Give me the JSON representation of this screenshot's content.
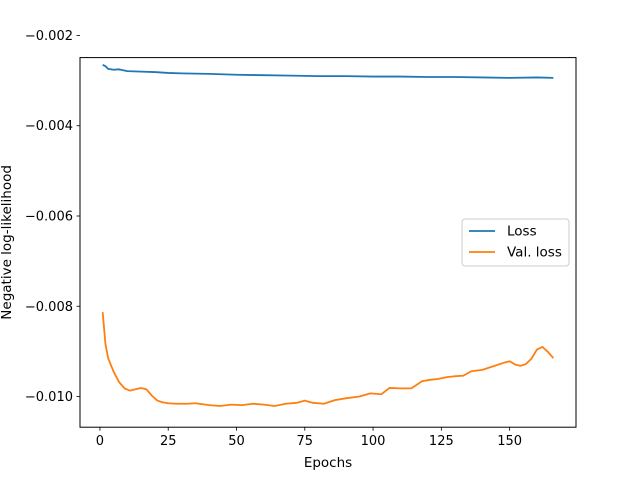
{
  "chart_data": {
    "type": "line",
    "title": "",
    "xlabel": "Epochs",
    "ylabel": "Negative log-likelihood",
    "xlim": [
      -7.3,
      174.3
    ],
    "ylim": [
      -0.01068,
      -0.00249
    ],
    "xticks": [
      0,
      25,
      50,
      75,
      100,
      125,
      150
    ],
    "xtick_labels": [
      "0",
      "25",
      "50",
      "75",
      "100",
      "125",
      "150"
    ],
    "yticks": [
      -0.01,
      -0.008,
      -0.006,
      -0.004,
      -0.002
    ],
    "ytick_labels": [
      "−0.010",
      "−0.008",
      "−0.006",
      "−0.004",
      "−0.002"
    ],
    "grid": false,
    "legend_position": "center-right",
    "series": [
      {
        "name": "Loss",
        "color": "#1f77b4",
        "points": [
          [
            1,
            -0.00265
          ],
          [
            2,
            -0.00268
          ],
          [
            3,
            -0.00274
          ],
          [
            5,
            -0.00276
          ],
          [
            7,
            -0.00275
          ],
          [
            10,
            -0.00279
          ],
          [
            15,
            -0.0028
          ],
          [
            20,
            -0.00281
          ],
          [
            25,
            -0.00283
          ],
          [
            30,
            -0.00284
          ],
          [
            40,
            -0.00285
          ],
          [
            50,
            -0.00287
          ],
          [
            60,
            -0.00288
          ],
          [
            70,
            -0.00289
          ],
          [
            80,
            -0.0029
          ],
          [
            90,
            -0.0029
          ],
          [
            100,
            -0.00291
          ],
          [
            110,
            -0.00291
          ],
          [
            120,
            -0.00292
          ],
          [
            130,
            -0.00292
          ],
          [
            140,
            -0.00293
          ],
          [
            150,
            -0.00294
          ],
          [
            160,
            -0.00293
          ],
          [
            166,
            -0.00294
          ]
        ]
      },
      {
        "name": "Val. loss",
        "color": "#ff7f0e",
        "points": [
          [
            1,
            -0.00813
          ],
          [
            2,
            -0.00883
          ],
          [
            3,
            -0.00915
          ],
          [
            5,
            -0.00945
          ],
          [
            7,
            -0.00968
          ],
          [
            9,
            -0.00982
          ],
          [
            11,
            -0.00987
          ],
          [
            13,
            -0.00984
          ],
          [
            15,
            -0.00981
          ],
          [
            17,
            -0.00984
          ],
          [
            19,
            -0.00998
          ],
          [
            21,
            -0.01009
          ],
          [
            23,
            -0.01013
          ],
          [
            25,
            -0.01015
          ],
          [
            28,
            -0.01016
          ],
          [
            32,
            -0.01016
          ],
          [
            35,
            -0.01015
          ],
          [
            40,
            -0.01019
          ],
          [
            44,
            -0.01021
          ],
          [
            48,
            -0.01018
          ],
          [
            52,
            -0.01019
          ],
          [
            56,
            -0.01016
          ],
          [
            60,
            -0.01018
          ],
          [
            64,
            -0.01021
          ],
          [
            68,
            -0.01016
          ],
          [
            72,
            -0.01014
          ],
          [
            75,
            -0.01009
          ],
          [
            78,
            -0.01014
          ],
          [
            82,
            -0.01016
          ],
          [
            86,
            -0.01008
          ],
          [
            90,
            -0.01004
          ],
          [
            95,
            -0.01
          ],
          [
            99,
            -0.00993
          ],
          [
            103,
            -0.00995
          ],
          [
            106,
            -0.00981
          ],
          [
            110,
            -0.00982
          ],
          [
            114,
            -0.00982
          ],
          [
            118,
            -0.00966
          ],
          [
            121,
            -0.00963
          ],
          [
            124,
            -0.00961
          ],
          [
            127,
            -0.00957
          ],
          [
            130,
            -0.00955
          ],
          [
            133,
            -0.00954
          ],
          [
            136,
            -0.00944
          ],
          [
            140,
            -0.00941
          ],
          [
            144,
            -0.00933
          ],
          [
            148,
            -0.00925
          ],
          [
            150,
            -0.00922
          ],
          [
            152,
            -0.00929
          ],
          [
            154,
            -0.00932
          ],
          [
            156,
            -0.00928
          ],
          [
            158,
            -0.00916
          ],
          [
            160,
            -0.00896
          ],
          [
            162,
            -0.0089
          ],
          [
            164,
            -0.00901
          ],
          [
            166,
            -0.00915
          ]
        ]
      }
    ]
  }
}
